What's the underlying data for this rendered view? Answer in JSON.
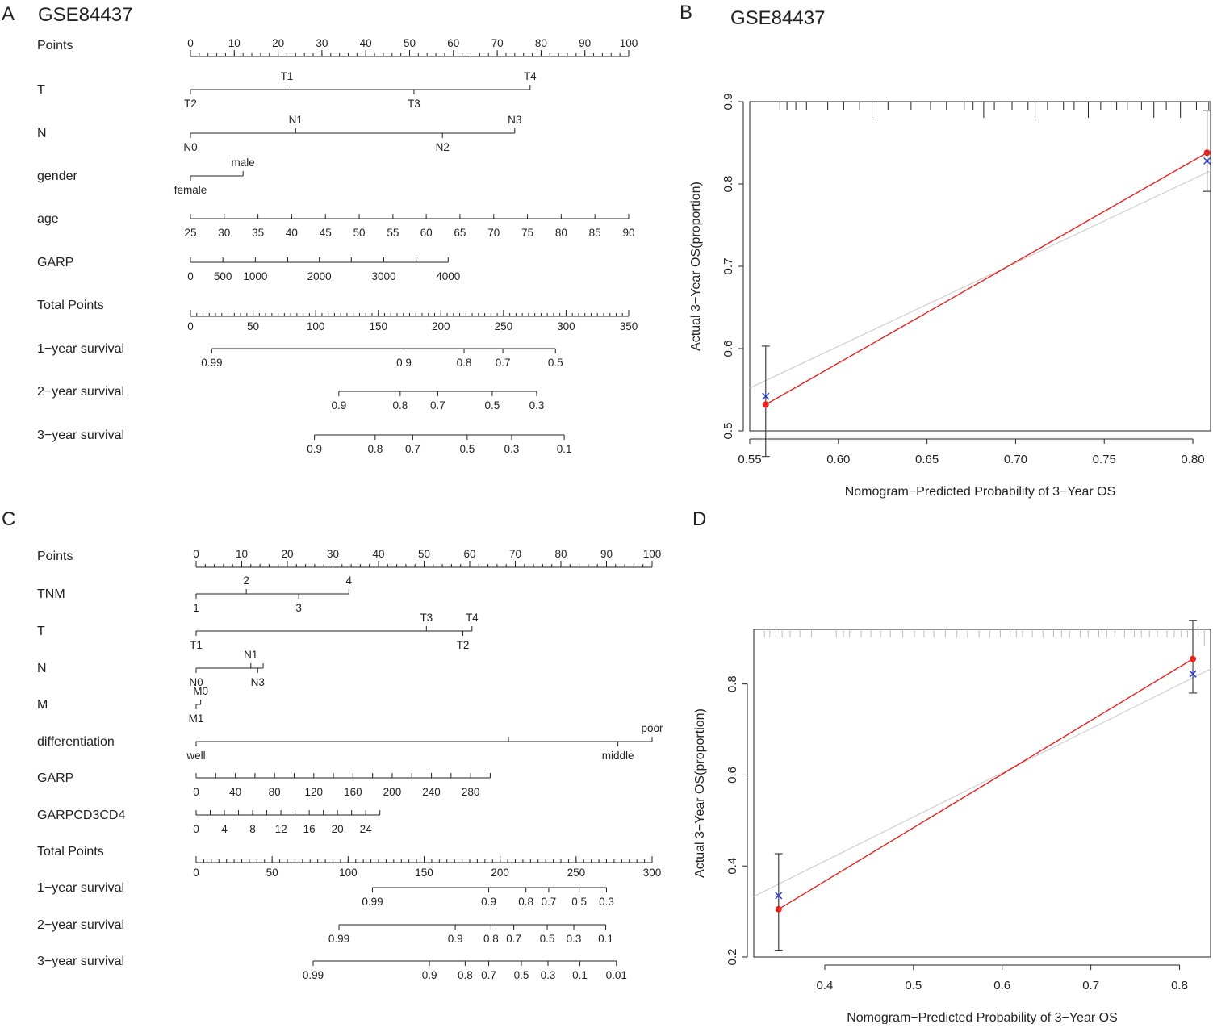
{
  "chart_data": [
    {
      "panel": "A",
      "type": "nomogram",
      "title": "GSE84437",
      "rows": [
        {
          "label": "Points",
          "kind": "scale",
          "domain": [
            0,
            100
          ],
          "ticks": [
            "0",
            "10",
            "20",
            "30",
            "40",
            "50",
            "60",
            "70",
            "80",
            "90",
            "100"
          ],
          "minor": 5
        },
        {
          "label": "T",
          "kind": "factor",
          "levels": [
            {
              "name": "T2",
              "points": 0,
              "side": "below"
            },
            {
              "name": "T1",
              "points": 22,
              "side": "above"
            },
            {
              "name": "T3",
              "points": 51,
              "side": "below"
            },
            {
              "name": "T4",
              "points": 77.5,
              "side": "above"
            }
          ]
        },
        {
          "label": "N",
          "kind": "factor",
          "levels": [
            {
              "name": "N0",
              "points": 0,
              "side": "below"
            },
            {
              "name": "N1",
              "points": 24,
              "side": "above"
            },
            {
              "name": "N2",
              "points": 57.5,
              "side": "below"
            },
            {
              "name": "N3",
              "points": 74,
              "side": "above"
            }
          ]
        },
        {
          "label": "gender",
          "kind": "factor",
          "levels": [
            {
              "name": "female",
              "points": 0,
              "side": "below"
            },
            {
              "name": "male",
              "points": 12,
              "side": "above"
            }
          ]
        },
        {
          "label": "age",
          "kind": "continuous",
          "ticks": [
            {
              "v": "25",
              "p": 0
            },
            {
              "v": "30",
              "p": 7.7
            },
            {
              "v": "35",
              "p": 15.4
            },
            {
              "v": "40",
              "p": 23.1
            },
            {
              "v": "45",
              "p": 30.8
            },
            {
              "v": "50",
              "p": 38.5
            },
            {
              "v": "55",
              "p": 46.2
            },
            {
              "v": "60",
              "p": 53.8
            },
            {
              "v": "65",
              "p": 61.5
            },
            {
              "v": "70",
              "p": 69.2
            },
            {
              "v": "75",
              "p": 76.9
            },
            {
              "v": "80",
              "p": 84.6
            },
            {
              "v": "85",
              "p": 92.3
            },
            {
              "v": "90",
              "p": 100
            }
          ]
        },
        {
          "label": "GARP",
          "kind": "continuous",
          "ticks": [
            {
              "v": "0",
              "p": 0
            },
            {
              "v": "500",
              "p": 7.4
            },
            {
              "v": "1000",
              "p": 14.8
            },
            {
              "v": "",
              "p": 22.2
            },
            {
              "v": "2000",
              "p": 29.4
            },
            {
              "v": "",
              "p": 36.7
            },
            {
              "v": "3000",
              "p": 44.1
            },
            {
              "v": "",
              "p": 51.5
            },
            {
              "v": "4000",
              "p": 58.8
            }
          ]
        },
        {
          "label": "Total Points",
          "kind": "scale",
          "domain": [
            0,
            350
          ],
          "ticks": [
            "0",
            "50",
            "100",
            "150",
            "200",
            "250",
            "300",
            "350"
          ],
          "minor": 10
        },
        {
          "label": "1−year survival",
          "kind": "survival",
          "ticks": [
            {
              "v": "0.99",
              "t": 17
            },
            {
              "v": "0.9",
              "t": 170.5
            },
            {
              "v": "0.8",
              "t": 218.5
            },
            {
              "v": "0.7",
              "t": 249.5
            },
            {
              "v": "0.5",
              "t": 291.5
            }
          ]
        },
        {
          "label": "2−year survival",
          "kind": "survival",
          "ticks": [
            {
              "v": "0.9",
              "t": 118.5
            },
            {
              "v": "0.8",
              "t": 167.5
            },
            {
              "v": "0.7",
              "t": 197.5
            },
            {
              "v": "0.5",
              "t": 241
            },
            {
              "v": "0.3",
              "t": 276.5
            }
          ]
        },
        {
          "label": "3−year survival",
          "kind": "survival",
          "ticks": [
            {
              "v": "0.9",
              "t": 99
            },
            {
              "v": "0.8",
              "t": 147.5
            },
            {
              "v": "0.7",
              "t": 177.5
            },
            {
              "v": "0.5",
              "t": 221
            },
            {
              "v": "0.3",
              "t": 256.5
            },
            {
              "v": "0.1",
              "t": 298.5
            }
          ]
        }
      ]
    },
    {
      "panel": "B",
      "type": "scatter",
      "title": "GSE84437",
      "xlabel": "Nomogram−Predicted Probability of 3−Year OS",
      "ylabel": "Actual 3−Year OS(proportion)",
      "xlim": [
        0.55,
        0.81
      ],
      "ylim": [
        0.5,
        0.9
      ],
      "xticks": [
        "0.55",
        "0.60",
        "0.65",
        "0.70",
        "0.75",
        "0.80"
      ],
      "yticks": [
        "0.5",
        "0.6",
        "0.7",
        "0.8",
        "0.9"
      ],
      "points": [
        {
          "x": 0.559,
          "observed": 0.532,
          "bias_corrected": 0.542,
          "lower": 0.469,
          "upper": 0.603
        },
        {
          "x": 0.808,
          "observed": 0.838,
          "bias_corrected": 0.828,
          "lower": 0.791,
          "upper": 0.889
        }
      ],
      "ideal_line": [
        [
          0.55,
          0.552
        ],
        [
          0.81,
          0.816
        ]
      ],
      "rug": [
        0.567,
        0.571,
        0.576,
        0.582,
        0.594,
        0.603,
        0.612,
        0.619,
        0.628,
        0.641,
        0.652,
        0.661,
        0.671,
        0.676,
        0.682,
        0.688,
        0.698,
        0.707,
        0.711,
        0.718,
        0.727,
        0.733,
        0.741,
        0.748,
        0.757,
        0.763,
        0.771,
        0.778,
        0.785,
        0.793,
        0.802,
        0.809
      ],
      "rug_long": [
        0.619,
        0.682,
        0.711,
        0.741,
        0.778,
        0.793
      ]
    },
    {
      "panel": "C",
      "type": "nomogram",
      "title": "",
      "rows": [
        {
          "label": "Points",
          "kind": "scale",
          "domain": [
            0,
            100
          ],
          "ticks": [
            "0",
            "10",
            "20",
            "30",
            "40",
            "50",
            "60",
            "70",
            "80",
            "90",
            "100"
          ],
          "minor": 5
        },
        {
          "label": "TNM",
          "kind": "factor",
          "levels": [
            {
              "name": "1",
              "points": 0,
              "side": "below"
            },
            {
              "name": "2",
              "points": 11,
              "side": "above"
            },
            {
              "name": "3",
              "points": 22.5,
              "side": "below"
            },
            {
              "name": "4",
              "points": 33.5,
              "side": "above"
            }
          ]
        },
        {
          "label": "T",
          "kind": "factor",
          "levels": [
            {
              "name": "T1",
              "points": 0,
              "side": "below"
            },
            {
              "name": "T3",
              "points": 50.5,
              "side": "above"
            },
            {
              "name": "T2",
              "points": 58.5,
              "side": "below"
            },
            {
              "name": "T4",
              "points": 60.5,
              "side": "above"
            }
          ]
        },
        {
          "label": "N",
          "kind": "factor",
          "levels": [
            {
              "name": "N0",
              "points": 0,
              "side": "below"
            },
            {
              "name": "N1",
              "points": 12,
              "side": "above"
            },
            {
              "name": "N3",
              "points": 13.5,
              "side": "below"
            },
            {
              "name": "",
              "points": 14.7,
              "side": "above"
            }
          ]
        },
        {
          "label": "M",
          "kind": "factor",
          "levels": [
            {
              "name": "M0",
              "points": 1,
              "side": "above"
            },
            {
              "name": "M1",
              "points": 0,
              "side": "below"
            }
          ]
        },
        {
          "label": "differentiation",
          "kind": "factor",
          "levels": [
            {
              "name": "well",
              "points": 0,
              "side": "below"
            },
            {
              "name": "",
              "points": 68.5,
              "side": "above"
            },
            {
              "name": "middle",
              "points": 92.5,
              "side": "below"
            },
            {
              "name": "poor",
              "points": 100,
              "side": "above"
            }
          ]
        },
        {
          "label": "GARP",
          "kind": "continuous",
          "ticks": [
            {
              "v": "0",
              "p": 0
            },
            {
              "v": "",
              "p": 4.3
            },
            {
              "v": "40",
              "p": 8.6
            },
            {
              "v": "",
              "p": 12.9
            },
            {
              "v": "80",
              "p": 17.2
            },
            {
              "v": "",
              "p": 21.5
            },
            {
              "v": "120",
              "p": 25.8
            },
            {
              "v": "",
              "p": 30.1
            },
            {
              "v": "160",
              "p": 34.4
            },
            {
              "v": "",
              "p": 38.7
            },
            {
              "v": "200",
              "p": 43.0
            },
            {
              "v": "",
              "p": 47.3
            },
            {
              "v": "240",
              "p": 51.6
            },
            {
              "v": "",
              "p": 55.9
            },
            {
              "v": "280",
              "p": 60.2
            },
            {
              "v": "",
              "p": 64.5
            }
          ]
        },
        {
          "label": "GARPCD3CD4",
          "kind": "continuous",
          "ticks": [
            {
              "v": "0",
              "p": 0
            },
            {
              "v": "",
              "p": 3.1
            },
            {
              "v": "4",
              "p": 6.2
            },
            {
              "v": "",
              "p": 9.3
            },
            {
              "v": "8",
              "p": 12.4
            },
            {
              "v": "",
              "p": 15.5
            },
            {
              "v": "12",
              "p": 18.6
            },
            {
              "v": "",
              "p": 21.7
            },
            {
              "v": "16",
              "p": 24.8
            },
            {
              "v": "",
              "p": 27.9
            },
            {
              "v": "20",
              "p": 31.0
            },
            {
              "v": "",
              "p": 34.1
            },
            {
              "v": "24",
              "p": 37.2
            },
            {
              "v": "",
              "p": 40.3
            }
          ]
        },
        {
          "label": "Total Points",
          "kind": "scale",
          "domain": [
            0,
            300
          ],
          "ticks": [
            "0",
            "50",
            "100",
            "150",
            "200",
            "250",
            "300"
          ],
          "minor": 10
        },
        {
          "label": "1−year survival",
          "kind": "survival",
          "ticks": [
            {
              "v": "0.99",
              "t": 116
            },
            {
              "v": "0.9",
              "t": 192.5
            },
            {
              "v": "0.8",
              "t": 217
            },
            {
              "v": "0.7",
              "t": 232
            },
            {
              "v": "0.5",
              "t": 252
            },
            {
              "v": "0.3",
              "t": 270
            }
          ]
        },
        {
          "label": "2−year survival",
          "kind": "survival",
          "ticks": [
            {
              "v": "0.99",
              "t": 94
            },
            {
              "v": "0.9",
              "t": 170.5
            },
            {
              "v": "0.8",
              "t": 194
            },
            {
              "v": "0.7",
              "t": 209
            },
            {
              "v": "0.5",
              "t": 231
            },
            {
              "v": "0.3",
              "t": 248.5
            },
            {
              "v": "0.1",
              "t": 269.5
            }
          ]
        },
        {
          "label": "3−year survival",
          "kind": "survival",
          "ticks": [
            {
              "v": "0.99",
              "t": 77
            },
            {
              "v": "0.9",
              "t": 153.5
            },
            {
              "v": "0.8",
              "t": 177
            },
            {
              "v": "0.7",
              "t": 192.5
            },
            {
              "v": "0.5",
              "t": 214
            },
            {
              "v": "0.3",
              "t": 231.5
            },
            {
              "v": "0.1",
              "t": 252.5
            },
            {
              "v": "0.01",
              "t": 276.5
            }
          ]
        }
      ]
    },
    {
      "panel": "D",
      "type": "scatter",
      "title": "",
      "xlabel": "Nomogram−Predicted Probability of 3−Year OS",
      "ylabel": "Actual 3−Year OS(proportion)",
      "xlim": [
        0.32,
        0.835
      ],
      "ylim": [
        0.2,
        0.92
      ],
      "xticks": [
        "0.4",
        "0.5",
        "0.6",
        "0.7",
        "0.8"
      ],
      "yticks": [
        "0.2",
        "0.4",
        "0.6",
        "0.8"
      ],
      "points": [
        {
          "x": 0.348,
          "observed": 0.305,
          "bias_corrected": 0.335,
          "lower": 0.215,
          "upper": 0.427
        },
        {
          "x": 0.815,
          "observed": 0.855,
          "bias_corrected": 0.822,
          "lower": 0.78,
          "upper": 0.94
        }
      ],
      "ideal_line": [
        [
          0.32,
          0.333
        ],
        [
          0.835,
          0.833
        ]
      ],
      "rug": [
        0.332,
        0.338,
        0.345,
        0.352,
        0.361,
        0.372,
        0.385,
        0.413,
        0.421,
        0.428,
        0.441,
        0.452,
        0.463,
        0.474,
        0.488,
        0.501,
        0.512,
        0.523,
        0.536,
        0.549,
        0.561,
        0.574,
        0.586,
        0.598,
        0.609,
        0.616,
        0.623,
        0.634,
        0.646,
        0.658,
        0.667,
        0.676,
        0.688,
        0.697,
        0.709,
        0.718,
        0.727,
        0.738,
        0.749,
        0.757,
        0.766,
        0.775,
        0.786,
        0.794,
        0.802,
        0.809,
        0.815,
        0.821,
        0.828
      ],
      "rug_long": [
        0.815,
        0.828
      ]
    }
  ]
}
